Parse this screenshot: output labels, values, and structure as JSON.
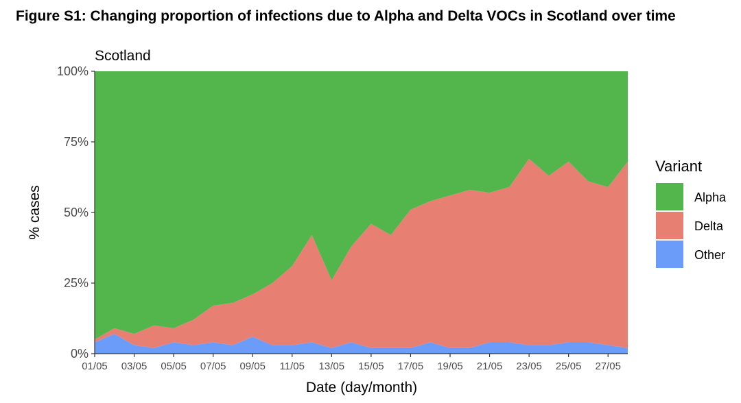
{
  "figure_title": "Figure S1: Changing proportion of infections due to Alpha and Delta VOCs in Scotland over time",
  "chart_data": {
    "type": "area",
    "stacked": true,
    "title": "Scotland",
    "xlabel": "Date (day/month)",
    "ylabel": "% cases",
    "ylim": [
      0,
      100
    ],
    "y_ticks": [
      "0%",
      "25%",
      "50%",
      "75%",
      "100%"
    ],
    "x_ticks": [
      "01/05",
      "03/05",
      "05/05",
      "07/05",
      "09/05",
      "11/05",
      "13/05",
      "15/05",
      "17/05",
      "19/05",
      "21/05",
      "23/05",
      "25/05",
      "27/05"
    ],
    "x_days": [
      1,
      2,
      3,
      4,
      5,
      6,
      7,
      8,
      9,
      10,
      11,
      12,
      13,
      14,
      15,
      16,
      17,
      18,
      19,
      20,
      21,
      22,
      23,
      24,
      25,
      26,
      27,
      28
    ],
    "legend_title": "Variant",
    "legend_position": "right",
    "colors": {
      "Alpha": "#53b64c",
      "Delta": "#e77f72",
      "Other": "#6b9cf9"
    },
    "series": [
      {
        "name": "Other",
        "values": [
          4,
          7,
          3,
          2,
          4,
          3,
          4,
          3,
          6,
          3,
          3,
          4,
          2,
          4,
          2,
          2,
          2,
          4,
          2,
          2,
          4,
          4,
          3,
          3,
          4,
          4,
          3,
          2
        ]
      },
      {
        "name": "Delta",
        "values": [
          1,
          2,
          4,
          8,
          5,
          9,
          13,
          15,
          15,
          22,
          28,
          38,
          24,
          34,
          44,
          40,
          49,
          50,
          54,
          56,
          53,
          55,
          66,
          60,
          64,
          57,
          56,
          66
        ]
      },
      {
        "name": "Alpha",
        "values": [
          95,
          91,
          93,
          90,
          91,
          88,
          83,
          82,
          79,
          75,
          69,
          58,
          74,
          62,
          54,
          58,
          49,
          46,
          44,
          42,
          43,
          41,
          31,
          37,
          32,
          39,
          41,
          32
        ]
      }
    ]
  }
}
